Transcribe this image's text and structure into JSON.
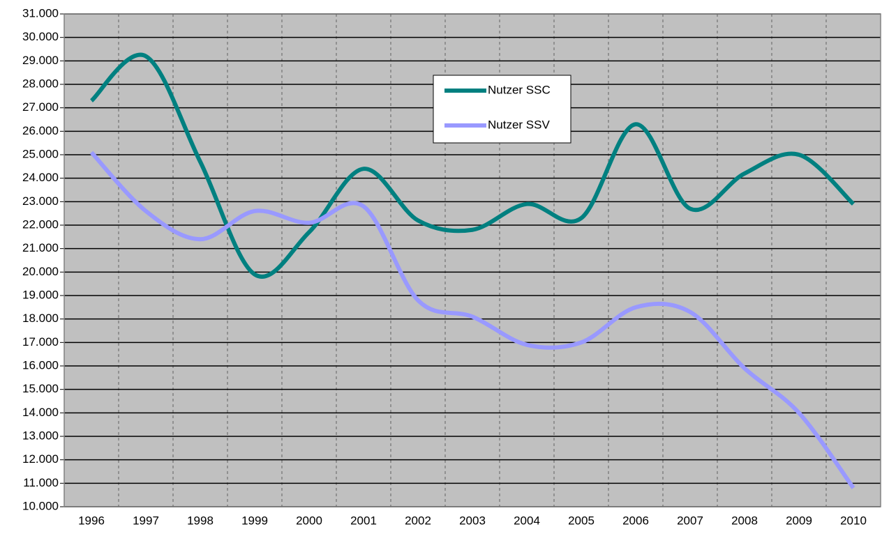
{
  "chart_data": {
    "type": "line",
    "categories": [
      "1996",
      "1997",
      "1998",
      "1999",
      "2000",
      "2001",
      "2002",
      "2003",
      "2004",
      "2005",
      "2006",
      "2007",
      "2008",
      "2009",
      "2010"
    ],
    "series": [
      {
        "name": "Nutzer SSC",
        "color": "#008080",
        "values": [
          27300,
          29200,
          24700,
          19900,
          21700,
          24400,
          22200,
          21800,
          22900,
          22300,
          26300,
          22700,
          24200,
          25000,
          22900
        ]
      },
      {
        "name": "Nutzer SSV",
        "color": "#9999FF",
        "values": [
          25100,
          22600,
          21400,
          22600,
          22100,
          22800,
          18800,
          18100,
          16900,
          17000,
          18500,
          18300,
          15900,
          14000,
          10800
        ]
      }
    ],
    "ylim": [
      10000,
      31000
    ],
    "yticks": [
      {
        "value": 10000,
        "label": "10.000"
      },
      {
        "value": 11000,
        "label": "11.000"
      },
      {
        "value": 12000,
        "label": "12.000"
      },
      {
        "value": 13000,
        "label": "13.000"
      },
      {
        "value": 14000,
        "label": "14.000"
      },
      {
        "value": 15000,
        "label": "15.000"
      },
      {
        "value": 16000,
        "label": "16.000"
      },
      {
        "value": 17000,
        "label": "17.000"
      },
      {
        "value": 18000,
        "label": "18.000"
      },
      {
        "value": 19000,
        "label": "19.000"
      },
      {
        "value": 20000,
        "label": "20.000"
      },
      {
        "value": 21000,
        "label": "21.000"
      },
      {
        "value": 22000,
        "label": "22.000"
      },
      {
        "value": 23000,
        "label": "23.000"
      },
      {
        "value": 24000,
        "label": "24.000"
      },
      {
        "value": 25000,
        "label": "25.000"
      },
      {
        "value": 26000,
        "label": "26.000"
      },
      {
        "value": 27000,
        "label": "27.000"
      },
      {
        "value": 28000,
        "label": "28.000"
      },
      {
        "value": 29000,
        "label": "29.000"
      },
      {
        "value": 30000,
        "label": "30.000"
      },
      {
        "value": 31000,
        "label": "31.000"
      }
    ],
    "grid": true,
    "smooth": true,
    "legend": "top"
  }
}
